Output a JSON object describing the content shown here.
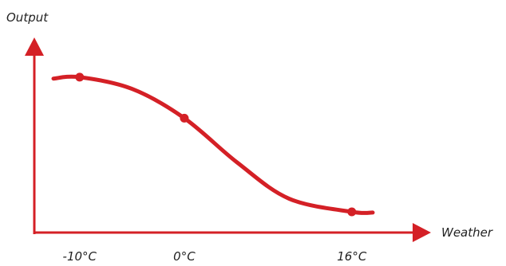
{
  "chart_data": {
    "type": "line",
    "xlabel": "Weather",
    "ylabel": "Output",
    "x_tick_labels": [
      "-10°C",
      "0°C",
      "16°C"
    ],
    "x_ticks": [
      -10,
      0,
      16
    ],
    "xlim": [
      -12.5,
      18
    ],
    "ylim": [
      0,
      1.05
    ],
    "grid": false,
    "line_color": "#d42026",
    "curve_x": [
      -12.5,
      -10,
      -5,
      0,
      5,
      10,
      16,
      18
    ],
    "curve_y": [
      0.97,
      0.98,
      0.9,
      0.7,
      0.4,
      0.15,
      0.06,
      0.055
    ],
    "marked_points": {
      "x": [
        -10,
        0,
        16
      ],
      "y": [
        0.98,
        0.7,
        0.06
      ]
    }
  }
}
